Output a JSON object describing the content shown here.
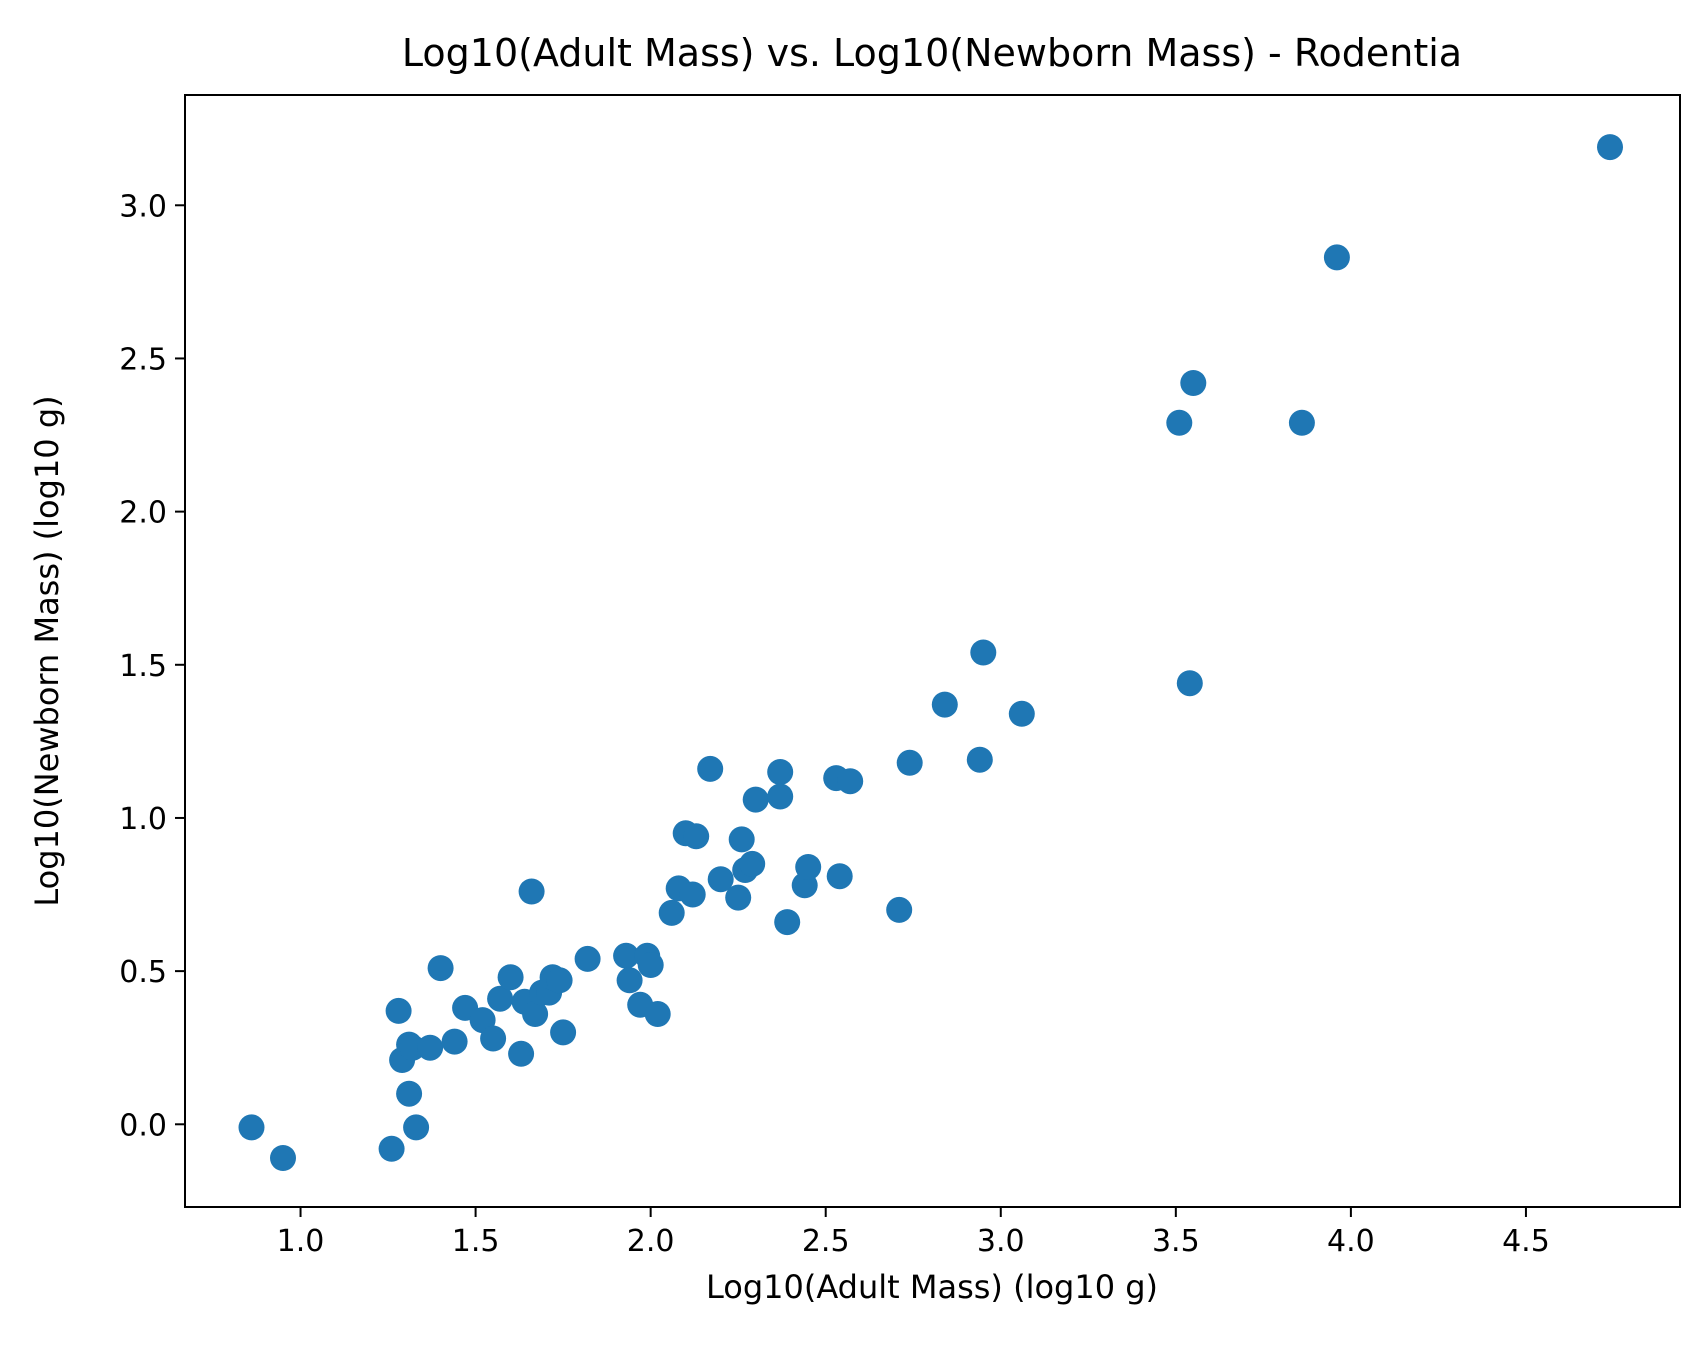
{
  "chart_data": {
    "type": "scatter",
    "title": "Log10(Adult Mass) vs. Log10(Newborn Mass) - Rodentia",
    "xlabel": "Log10(Adult Mass) (log10 g)",
    "ylabel": "Log10(Newborn Mass) (log10 g)",
    "xlim": [
      0.67,
      4.94
    ],
    "ylim": [
      -0.27,
      3.36
    ],
    "xticks": [
      "1.0",
      "1.5",
      "2.0",
      "2.5",
      "3.0",
      "3.5",
      "4.0",
      "4.5"
    ],
    "yticks": [
      "0.0",
      "0.5",
      "1.0",
      "1.5",
      "2.0",
      "2.5",
      "3.0"
    ],
    "grid": false,
    "marker_color": "#1f77b4",
    "points": [
      [
        0.86,
        -0.01
      ],
      [
        0.95,
        -0.11
      ],
      [
        1.26,
        -0.08
      ],
      [
        1.28,
        0.37
      ],
      [
        1.29,
        0.21
      ],
      [
        1.31,
        0.1
      ],
      [
        1.31,
        0.26
      ],
      [
        1.32,
        0.25
      ],
      [
        1.33,
        -0.01
      ],
      [
        1.37,
        0.25
      ],
      [
        1.4,
        0.51
      ],
      [
        1.44,
        0.27
      ],
      [
        1.47,
        0.38
      ],
      [
        1.52,
        0.34
      ],
      [
        1.55,
        0.28
      ],
      [
        1.57,
        0.41
      ],
      [
        1.6,
        0.48
      ],
      [
        1.63,
        0.23
      ],
      [
        1.64,
        0.4
      ],
      [
        1.66,
        0.76
      ],
      [
        1.67,
        0.36
      ],
      [
        1.69,
        0.43
      ],
      [
        1.71,
        0.43
      ],
      [
        1.72,
        0.48
      ],
      [
        1.74,
        0.47
      ],
      [
        1.75,
        0.3
      ],
      [
        1.82,
        0.54
      ],
      [
        1.93,
        0.55
      ],
      [
        1.94,
        0.47
      ],
      [
        1.97,
        0.39
      ],
      [
        1.99,
        0.55
      ],
      [
        2.0,
        0.52
      ],
      [
        2.02,
        0.36
      ],
      [
        2.06,
        0.69
      ],
      [
        2.08,
        0.77
      ],
      [
        2.1,
        0.95
      ],
      [
        2.12,
        0.75
      ],
      [
        2.13,
        0.94
      ],
      [
        2.17,
        1.16
      ],
      [
        2.2,
        0.8
      ],
      [
        2.25,
        0.74
      ],
      [
        2.26,
        0.93
      ],
      [
        2.27,
        0.83
      ],
      [
        2.29,
        0.85
      ],
      [
        2.3,
        1.06
      ],
      [
        2.37,
        1.15
      ],
      [
        2.37,
        1.07
      ],
      [
        2.39,
        0.66
      ],
      [
        2.44,
        0.78
      ],
      [
        2.45,
        0.84
      ],
      [
        2.53,
        1.13
      ],
      [
        2.54,
        0.81
      ],
      [
        2.57,
        1.12
      ],
      [
        2.71,
        0.7
      ],
      [
        2.74,
        1.18
      ],
      [
        2.84,
        1.37
      ],
      [
        2.94,
        1.19
      ],
      [
        2.95,
        1.54
      ],
      [
        3.06,
        1.34
      ],
      [
        3.51,
        2.29
      ],
      [
        3.54,
        1.44
      ],
      [
        3.55,
        2.42
      ],
      [
        3.86,
        2.29
      ],
      [
        3.96,
        2.83
      ],
      [
        4.74,
        3.19
      ]
    ]
  }
}
